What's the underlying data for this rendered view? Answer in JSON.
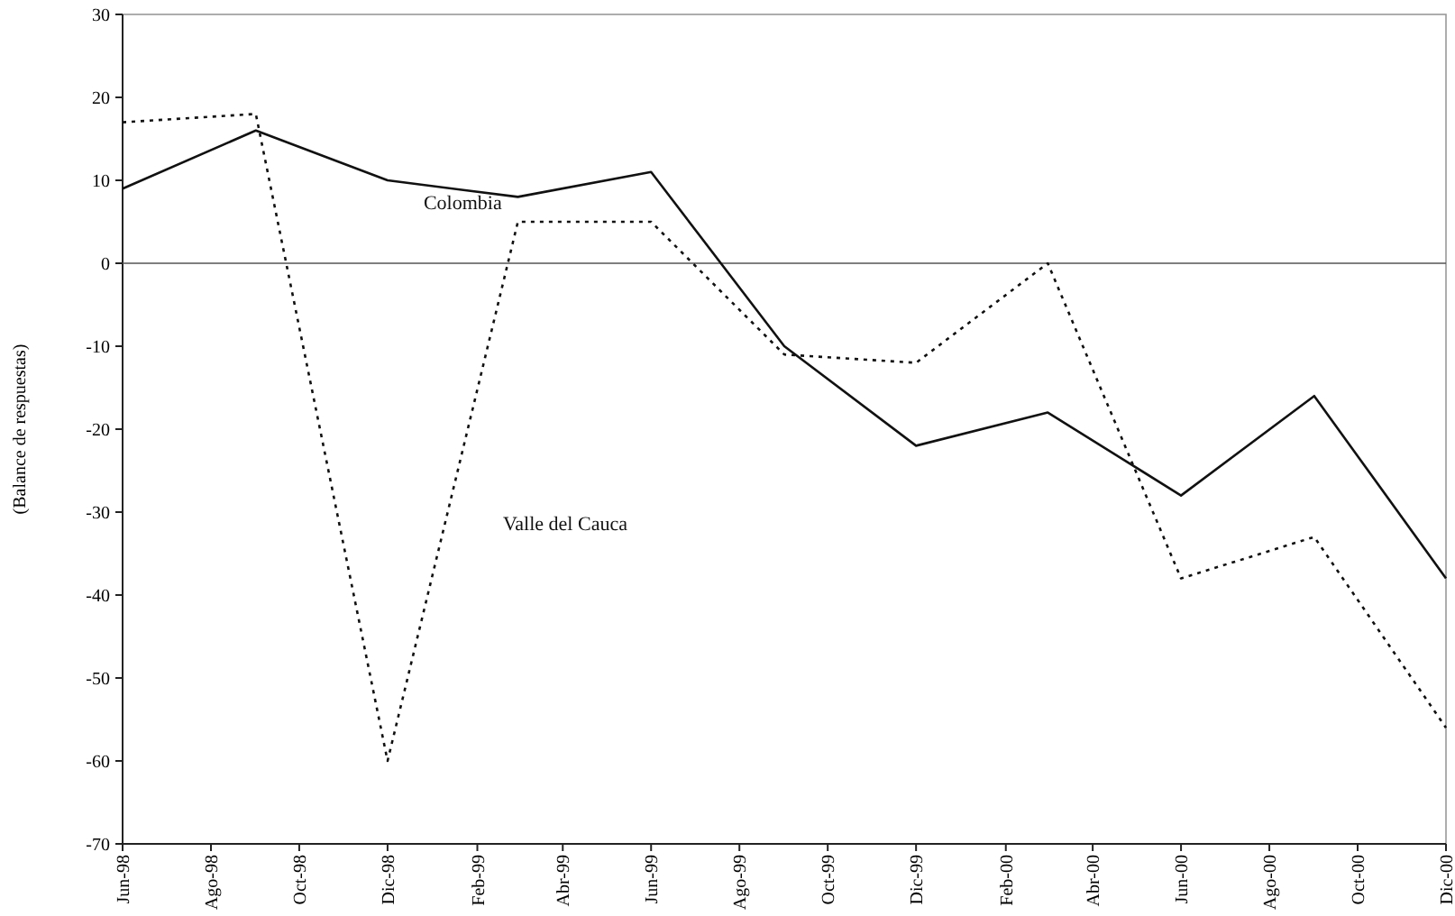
{
  "chart_data": {
    "type": "line",
    "ylabel": "(Balance de respuestas)",
    "x": [
      "1998-06",
      "1998-09",
      "1998-12",
      "1999-03",
      "1999-06",
      "1999-09",
      "1999-12",
      "2000-03",
      "2000-06",
      "2000-09",
      "2000-12"
    ],
    "series": [
      {
        "name": "Colombia",
        "color": "#111111",
        "line_style": "solid",
        "values": [
          9,
          16,
          10,
          8,
          11,
          -10,
          -22,
          -18,
          -28,
          -16,
          -38
        ]
      },
      {
        "name": "Valle del Cauca",
        "color": "#111111",
        "line_style": "dotted",
        "values": [
          17,
          18,
          -60,
          5,
          5,
          -11,
          -12,
          0,
          -38,
          -33,
          -56
        ]
      }
    ],
    "xlim": [
      "1998-06",
      "2000-12"
    ],
    "xticks": [
      {
        "value": "1998-06",
        "label": "Jun-98"
      },
      {
        "value": "1998-08",
        "label": "Ago-98"
      },
      {
        "value": "1998-10",
        "label": "Oct-98"
      },
      {
        "value": "1998-12",
        "label": "Dic-98"
      },
      {
        "value": "1999-02",
        "label": "Feb-99"
      },
      {
        "value": "1999-04",
        "label": "Abr-99"
      },
      {
        "value": "1999-06",
        "label": "Jun-99"
      },
      {
        "value": "1999-08",
        "label": "Ago-99"
      },
      {
        "value": "1999-10",
        "label": "Oct-99"
      },
      {
        "value": "1999-12",
        "label": "Dic-99"
      },
      {
        "value": "2000-02",
        "label": "Feb-00"
      },
      {
        "value": "2000-04",
        "label": "Abr-00"
      },
      {
        "value": "2000-06",
        "label": "Jun-00"
      },
      {
        "value": "2000-08",
        "label": "Ago-00"
      },
      {
        "value": "2000-10",
        "label": "Oct-00"
      },
      {
        "value": "2000-12",
        "label": "Dic-00"
      }
    ],
    "ylim": [
      -70,
      30
    ],
    "yticks": [
      -70,
      -60,
      -50,
      -40,
      -30,
      -20,
      -10,
      0,
      10,
      20,
      30
    ],
    "ref_lines": [
      {
        "axis": "y",
        "value": 0,
        "color": "#555555"
      }
    ],
    "legend": false,
    "grid": false,
    "marker": "none"
  }
}
